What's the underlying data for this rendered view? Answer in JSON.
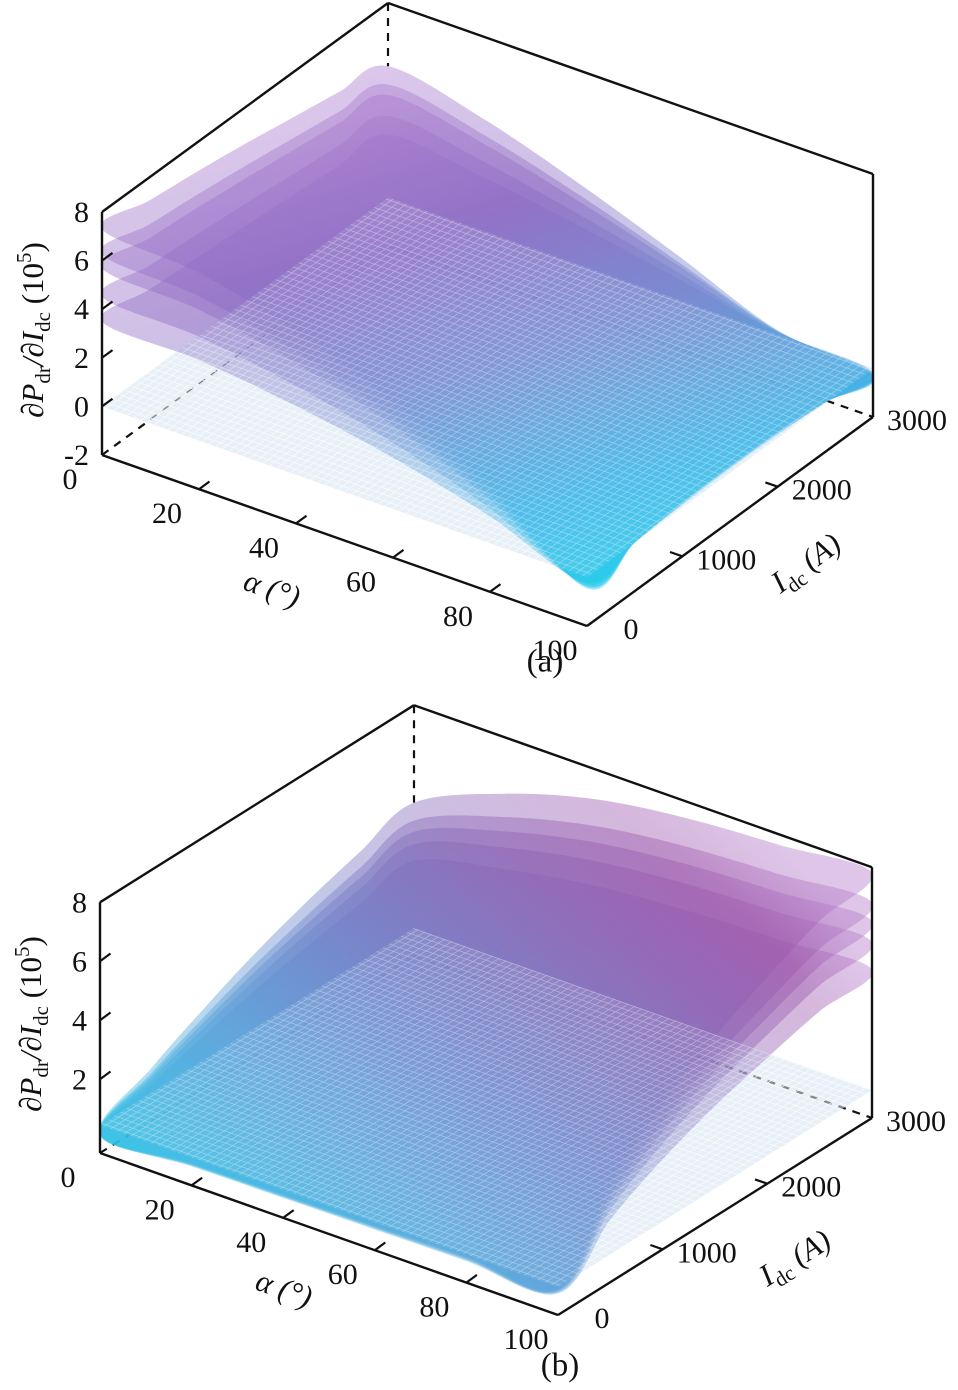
{
  "figure": {
    "background": "#ffffff",
    "panels": [
      {
        "caption": "(a)",
        "xlabel_parts": {
          "var": "α",
          "unit": " (°)"
        },
        "ylabel_parts": {
          "var": "I",
          "sub": "dc",
          "unit": " (A)"
        },
        "zlabel_parts": {
          "a": "∂P",
          "a_sub": "dr",
          "b": "/∂I",
          "b_sub": "dc",
          "c": " (10",
          "c_sup": "5",
          "d": ")"
        }
      },
      {
        "caption": "(b)",
        "xlabel_parts": {
          "var": "α",
          "unit": " (°)"
        },
        "ylabel_parts": {
          "var": "I",
          "sub": "dc",
          "unit": " (A)"
        },
        "zlabel_parts": {
          "a": "∂P",
          "a_sub": "dr",
          "b": "/∂I",
          "b_sub": "dc",
          "c": " (10",
          "c_sup": "5",
          "d": ")"
        }
      }
    ]
  },
  "chart_data": [
    {
      "type": "surface3d",
      "title": "",
      "xlabel": "α (°)",
      "ylabel": "I_dc (A)",
      "zlabel": "∂P_dr/∂I_dc (10^5)",
      "x_range": [
        0,
        100
      ],
      "y_range": [
        0,
        3000
      ],
      "z_range": [
        -2,
        8
      ],
      "x_ticks": [
        0,
        20,
        40,
        60,
        80,
        100
      ],
      "y_ticks": [
        0,
        1000,
        2000,
        3000
      ],
      "z_ticks": [
        -2,
        0,
        2,
        4,
        6,
        8
      ],
      "alpha_samples": [
        0,
        20,
        40,
        60,
        80,
        100
      ],
      "idc_samples": [
        0,
        500,
        1000,
        1500,
        2000,
        2500,
        3000
      ],
      "surfaces": {
        "count": 5,
        "scales": [
          1.0,
          0.86,
          0.78,
          0.62,
          0.48
        ],
        "base_grid": [
          [
            7.3,
            7.05,
            6.8,
            6.5,
            6.15,
            5.8,
            5.4
          ],
          [
            6.9,
            6.6,
            6.3,
            6.0,
            5.6,
            5.1,
            4.6
          ],
          [
            5.9,
            5.6,
            5.3,
            4.9,
            4.4,
            3.9,
            3.3
          ],
          [
            4.4,
            4.15,
            3.8,
            3.4,
            2.9,
            2.4,
            1.8
          ],
          [
            2.3,
            2.2,
            2.0,
            1.7,
            1.3,
            0.8,
            0.2
          ],
          [
            -0.45,
            0.0,
            0.25,
            0.35,
            0.3,
            0.05,
            -0.35
          ]
        ]
      },
      "plane_z": 0.0,
      "style": {
        "surface_opacity": 0.42,
        "gradient_dir": {
          "x1": "15%",
          "y1": "0%",
          "x2": "62%",
          "y2": "100%"
        },
        "gradient_stops": [
          {
            "o": 0,
            "c": "#b57fd2"
          },
          {
            "o": 0.35,
            "c": "#8a68c2"
          },
          {
            "o": 0.6,
            "c": "#6e86cf"
          },
          {
            "o": 0.85,
            "c": "#2fb4e8"
          },
          {
            "o": 1,
            "c": "#1ec8ea"
          }
        ],
        "plane_color": "#d7e3f3",
        "hatch_color": "#ffffff",
        "axis_color": "#111111"
      }
    },
    {
      "type": "surface3d",
      "title": "",
      "xlabel": "α (°)",
      "ylabel": "I_dc (A)",
      "zlabel": "∂P_dr/∂I_dc (10^5)",
      "x_range": [
        0,
        100
      ],
      "y_range": [
        0,
        3000
      ],
      "z_range": [
        -0.5,
        8
      ],
      "x_ticks": [
        0,
        20,
        40,
        60,
        80,
        100
      ],
      "y_ticks": [
        0,
        1000,
        2000,
        3000
      ],
      "z_ticks": [
        2,
        4,
        6,
        8
      ],
      "alpha_samples": [
        0,
        20,
        40,
        60,
        80,
        100
      ],
      "idc_samples": [
        0,
        500,
        1000,
        1500,
        2000,
        2500,
        3000
      ],
      "surfaces": {
        "count": 5,
        "scales": [
          1.0,
          0.87,
          0.79,
          0.7,
          0.58
        ],
        "base_grid": [
          [
            0.15,
            1.3,
            2.2,
            3.0,
            3.65,
            4.2,
            4.7
          ],
          [
            0.25,
            2.0,
            3.2,
            4.2,
            5.0,
            5.6,
            6.1
          ],
          [
            0.3,
            2.4,
            3.8,
            4.9,
            5.8,
            6.5,
            7.0
          ],
          [
            0.35,
            2.6,
            4.1,
            5.3,
            6.2,
            6.9,
            7.45
          ],
          [
            0.4,
            2.7,
            4.3,
            5.5,
            6.45,
            7.2,
            7.65
          ],
          [
            0.4,
            2.8,
            4.4,
            5.6,
            6.5,
            7.3,
            7.8
          ]
        ]
      },
      "plane_z": 0.45,
      "style": {
        "surface_opacity": 0.42,
        "gradient_dir": {
          "x1": "0%",
          "y1": "78%",
          "x2": "88%",
          "y2": "10%"
        },
        "gradient_stops": [
          {
            "o": 0,
            "c": "#25c8e8"
          },
          {
            "o": 0.28,
            "c": "#55a2da"
          },
          {
            "o": 0.52,
            "c": "#6f7cc6"
          },
          {
            "o": 0.75,
            "c": "#8a62b4"
          },
          {
            "o": 0.9,
            "c": "#9c55ab"
          },
          {
            "o": 1,
            "c": "#b278c8"
          }
        ],
        "plane_color": "#d7e3f3",
        "hatch_color": "#ffffff",
        "axis_color": "#111111"
      }
    }
  ]
}
